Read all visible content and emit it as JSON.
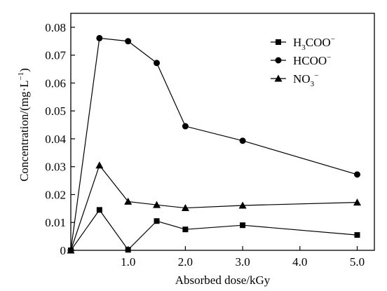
{
  "chart_data": {
    "type": "line",
    "xlabel": "Absorbed dose/kGy",
    "ylabel": "Concentration/(mg·L",
    "ylabel_sup": "−1",
    "ylabel_close": ")",
    "xlim": [
      0,
      5.3
    ],
    "ylim": [
      0,
      0.085
    ],
    "x_ticks": [
      1.0,
      2.0,
      3.0,
      4.0,
      5.0
    ],
    "x_tick_labels": [
      "1.0",
      "2.0",
      "3.0",
      "4.0",
      "5.0"
    ],
    "y_ticks": [
      0,
      0.01,
      0.02,
      0.03,
      0.04,
      0.05,
      0.06,
      0.07,
      0.08
    ],
    "y_tick_labels": [
      "0",
      "0.01",
      "0.02",
      "0.03",
      "0.04",
      "0.05",
      "0.06",
      "0.07",
      "0.08"
    ],
    "x": [
      0,
      0.5,
      1.0,
      1.5,
      2.0,
      3.0,
      5.0
    ],
    "series": [
      {
        "key": "h3coo",
        "marker": "square",
        "legend_parts": [
          [
            "H",
            ""
          ],
          [
            "3",
            "sub"
          ],
          [
            "COO",
            ""
          ],
          [
            "−",
            "sup"
          ]
        ],
        "values": [
          0,
          0.0145,
          0.0002,
          0.0105,
          0.0075,
          0.009,
          0.0055
        ]
      },
      {
        "key": "hcoo",
        "marker": "circle",
        "legend_parts": [
          [
            "HCOO",
            ""
          ],
          [
            "−",
            "sup"
          ]
        ],
        "values": [
          0,
          0.0761,
          0.075,
          0.0672,
          0.0445,
          0.0393,
          0.0272
        ]
      },
      {
        "key": "no3",
        "marker": "triangle",
        "legend_parts": [
          [
            "NO",
            ""
          ],
          [
            "3",
            "sub"
          ],
          [
            "−",
            "sup"
          ]
        ],
        "values": [
          0,
          0.0305,
          0.0175,
          0.0163,
          0.0152,
          0.0161,
          0.0172
        ]
      }
    ],
    "legend_position": "top-right",
    "grid": false
  }
}
